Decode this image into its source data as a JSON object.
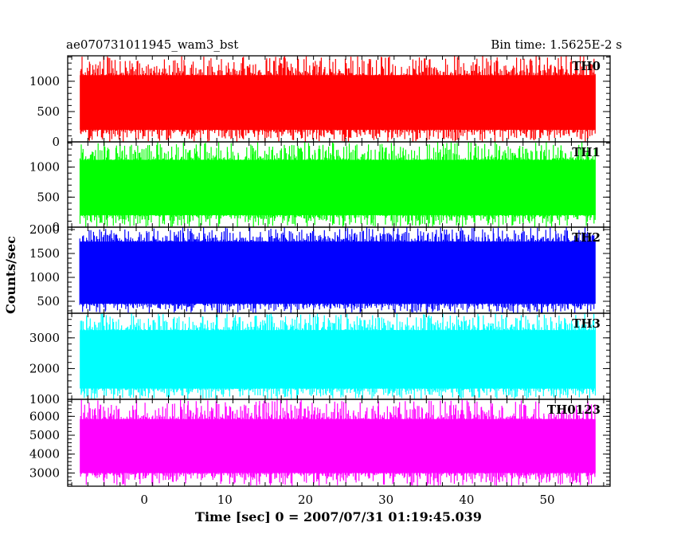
{
  "chart_data": {
    "type": "line",
    "title": "ae070731011945_wam3_bst",
    "bin_time_label": "Bin time: 1.5625E-2 s",
    "xlabel": "Time [sec] 0 = 2007/07/31 01:19:45.039",
    "ylabel": "Counts/sec",
    "xlim": [
      -9.5,
      57.8
    ],
    "data_x_range": [
      -8,
      56
    ],
    "x_ticks": [
      0,
      10,
      20,
      30,
      40,
      50
    ],
    "grid": false,
    "panels": [
      {
        "name": "TH0",
        "color": "#ff0000",
        "ylim": [
          0,
          1420
        ],
        "y_ticks": [
          0,
          500,
          1000
        ],
        "baseline": 630,
        "typical_low": 200,
        "typical_high": 1100,
        "min": 0,
        "max": 1420
      },
      {
        "name": "TH1",
        "color": "#00ff00",
        "ylim": [
          0,
          1420
        ],
        "y_ticks": [
          0,
          500,
          1000
        ],
        "baseline": 630,
        "typical_low": 200,
        "typical_high": 1120,
        "min": 0,
        "max": 1420
      },
      {
        "name": "TH2",
        "color": "#0000ff",
        "ylim": [
          250,
          2050
        ],
        "y_ticks": [
          500,
          1000,
          1500,
          2000
        ],
        "baseline": 1080,
        "typical_low": 450,
        "typical_high": 1750,
        "min": 250,
        "max": 2050
      },
      {
        "name": "TH3",
        "color": "#00ffff",
        "ylim": [
          1000,
          3800
        ],
        "y_ticks": [
          1000,
          2000,
          3000
        ],
        "baseline": 2300,
        "typical_low": 1350,
        "typical_high": 3250,
        "min": 1000,
        "max": 3800
      },
      {
        "name": "TH0123",
        "color": "#ff00ff",
        "ylim": [
          2300,
          6900
        ],
        "y_ticks": [
          3000,
          4000,
          5000,
          6000
        ],
        "baseline": 4500,
        "typical_low": 3000,
        "typical_high": 5850,
        "min": 2300,
        "max": 6900
      }
    ]
  }
}
